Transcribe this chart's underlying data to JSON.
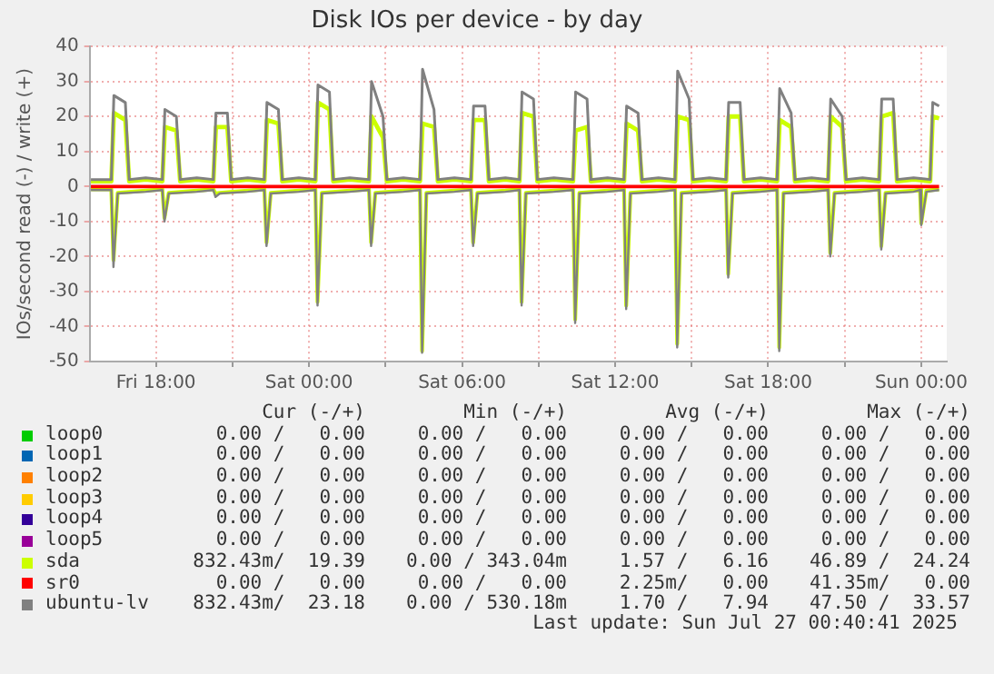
{
  "chart_data": {
    "type": "line",
    "title": "Disk IOs per device - by day",
    "ylabel": "IOs/second read (-) / write (+)",
    "xlim": [
      "2025-07-25T15:24",
      "2025-07-27T01:00"
    ],
    "xticks": [
      {
        "value": "2025-07-25T18:00",
        "label": "Fri 18:00"
      },
      {
        "value": "2025-07-25T21:00",
        "label": null
      },
      {
        "value": "2025-07-26T00:00",
        "label": "Sat 00:00"
      },
      {
        "value": "2025-07-26T03:00",
        "label": null
      },
      {
        "value": "2025-07-26T06:00",
        "label": "Sat 06:00"
      },
      {
        "value": "2025-07-26T09:00",
        "label": null
      },
      {
        "value": "2025-07-26T12:00",
        "label": "Sat 12:00"
      },
      {
        "value": "2025-07-26T15:00",
        "label": null
      },
      {
        "value": "2025-07-26T18:00",
        "label": "Sat 18:00"
      },
      {
        "value": "2025-07-26T21:00",
        "label": null
      },
      {
        "value": "2025-07-27T00:00",
        "label": "Sun 00:00"
      }
    ],
    "ylim": [
      -50,
      40
    ],
    "yticks": [
      -50,
      -40,
      -30,
      -20,
      -10,
      0,
      10,
      20,
      30,
      40
    ],
    "grid": true,
    "legend": "bottom",
    "marker": "none",
    "line_style": "solid",
    "series": [
      {
        "name": "loop0",
        "color": "#00cc00"
      },
      {
        "name": "loop1",
        "color": "#0066b3"
      },
      {
        "name": "loop2",
        "color": "#ff8000"
      },
      {
        "name": "loop3",
        "color": "#ffcc00"
      },
      {
        "name": "loop4",
        "color": "#330099"
      },
      {
        "name": "loop5",
        "color": "#990099"
      },
      {
        "name": "sda",
        "color": "#ccff00",
        "x": [
          "2025-07-25T15:27",
          "2025-07-25T16:15",
          "2025-07-25T16:21",
          "2025-07-25T16:48",
          "2025-07-25T16:57",
          "2025-07-25T17:36",
          "2025-07-25T18:15",
          "2025-07-25T18:21",
          "2025-07-25T18:48",
          "2025-07-25T18:57",
          "2025-07-25T19:36",
          "2025-07-25T20:15",
          "2025-07-25T20:21",
          "2025-07-25T20:48",
          "2025-07-25T20:57",
          "2025-07-25T21:36",
          "2025-07-25T22:15",
          "2025-07-25T22:21",
          "2025-07-25T22:48",
          "2025-07-25T22:57",
          "2025-07-25T23:36",
          "2025-07-26T00:15",
          "2025-07-26T00:21",
          "2025-07-26T00:48",
          "2025-07-26T00:57",
          "2025-07-26T01:36",
          "2025-07-26T02:21",
          "2025-07-26T02:27",
          "2025-07-26T02:54",
          "2025-07-26T03:03",
          "2025-07-26T03:42",
          "2025-07-26T04:21",
          "2025-07-26T04:27",
          "2025-07-26T04:54",
          "2025-07-26T05:03",
          "2025-07-26T05:42",
          "2025-07-26T06:21",
          "2025-07-26T06:27",
          "2025-07-26T06:54",
          "2025-07-26T07:03",
          "2025-07-26T07:42",
          "2025-07-26T08:15",
          "2025-07-26T08:21",
          "2025-07-26T08:48",
          "2025-07-26T08:57",
          "2025-07-26T09:36",
          "2025-07-26T10:21",
          "2025-07-26T10:27",
          "2025-07-26T10:54",
          "2025-07-26T11:03",
          "2025-07-26T11:42",
          "2025-07-26T12:21",
          "2025-07-26T12:27",
          "2025-07-26T12:54",
          "2025-07-26T13:03",
          "2025-07-26T13:42",
          "2025-07-26T14:21",
          "2025-07-26T14:27",
          "2025-07-26T14:54",
          "2025-07-26T15:03",
          "2025-07-26T15:42",
          "2025-07-26T16:21",
          "2025-07-26T16:27",
          "2025-07-26T16:54",
          "2025-07-26T17:03",
          "2025-07-26T17:42",
          "2025-07-26T18:21",
          "2025-07-26T18:27",
          "2025-07-26T18:54",
          "2025-07-26T19:03",
          "2025-07-26T19:42",
          "2025-07-26T20:21",
          "2025-07-26T20:27",
          "2025-07-26T20:54",
          "2025-07-26T21:03",
          "2025-07-26T21:42",
          "2025-07-26T22:21",
          "2025-07-26T22:27",
          "2025-07-26T22:54",
          "2025-07-26T23:03",
          "2025-07-26T23:42",
          "2025-07-27T00:21",
          "2025-07-27T00:27",
          "2025-07-27T00:42"
        ],
        "values": [
          1.5,
          1.5,
          21,
          19,
          1.5,
          2,
          1.5,
          17,
          16,
          1.5,
          2,
          1.5,
          17,
          17,
          1.5,
          2,
          1.5,
          19,
          18,
          1.5,
          2,
          1.5,
          24,
          22,
          1.5,
          2,
          1.5,
          20,
          14,
          1.5,
          2,
          1.5,
          18,
          17,
          1.5,
          2,
          1.5,
          19,
          19,
          1.5,
          2,
          1.5,
          21,
          20,
          1.5,
          2,
          1.5,
          16,
          17,
          1.5,
          2,
          1.5,
          18,
          16,
          1.5,
          2,
          1.5,
          20,
          19,
          1.5,
          2,
          1.5,
          20,
          20,
          1.5,
          2,
          1.5,
          19,
          17,
          1.5,
          2,
          1.5,
          20,
          17,
          1.5,
          2,
          1.5,
          20,
          21,
          1.5,
          2,
          1.5,
          20,
          19.5
        ]
      },
      {
        "color": "#ccff00",
        "x": [
          "2025-07-25T15:27",
          "2025-07-25T16:15",
          "2025-07-25T16:20",
          "2025-07-25T16:30",
          "2025-07-25T17:36",
          "2025-07-25T18:15",
          "2025-07-25T18:20",
          "2025-07-25T18:30",
          "2025-07-25T19:36",
          "2025-07-25T20:15",
          "2025-07-25T20:20",
          "2025-07-25T20:30",
          "2025-07-25T21:36",
          "2025-07-25T22:15",
          "2025-07-25T22:20",
          "2025-07-25T22:30",
          "2025-07-25T23:36",
          "2025-07-26T00:15",
          "2025-07-26T00:20",
          "2025-07-26T00:30",
          "2025-07-26T01:36",
          "2025-07-26T02:21",
          "2025-07-26T02:26",
          "2025-07-26T02:36",
          "2025-07-26T03:42",
          "2025-07-26T04:21",
          "2025-07-26T04:26",
          "2025-07-26T04:36",
          "2025-07-26T05:42",
          "2025-07-26T06:21",
          "2025-07-26T06:26",
          "2025-07-26T06:36",
          "2025-07-26T07:42",
          "2025-07-26T08:15",
          "2025-07-26T08:20",
          "2025-07-26T08:30",
          "2025-07-26T09:36",
          "2025-07-26T10:21",
          "2025-07-26T10:26",
          "2025-07-26T10:36",
          "2025-07-26T11:42",
          "2025-07-26T12:21",
          "2025-07-26T12:26",
          "2025-07-26T12:36",
          "2025-07-26T13:42",
          "2025-07-26T14:21",
          "2025-07-26T14:26",
          "2025-07-26T14:36",
          "2025-07-26T15:42",
          "2025-07-26T16:21",
          "2025-07-26T16:26",
          "2025-07-26T16:36",
          "2025-07-26T17:42",
          "2025-07-26T18:21",
          "2025-07-26T18:26",
          "2025-07-26T18:36",
          "2025-07-26T19:42",
          "2025-07-26T20:21",
          "2025-07-26T20:26",
          "2025-07-26T20:36",
          "2025-07-26T21:42",
          "2025-07-26T22:21",
          "2025-07-26T22:26",
          "2025-07-26T22:36",
          "2025-07-26T23:42",
          "2025-07-26T23:57",
          "2025-07-27T00:00",
          "2025-07-27T00:12",
          "2025-07-27T00:42"
        ],
        "values": [
          -0.8,
          -0.8,
          -21,
          -1.8,
          -1.2,
          -0.8,
          -9,
          -1.8,
          -1.2,
          -0.8,
          -2,
          -1.8,
          -1.2,
          -0.8,
          -16,
          -1.8,
          -1.2,
          -0.8,
          -33,
          -1.8,
          -1.2,
          -0.8,
          -16,
          -1.8,
          -1.2,
          -0.8,
          -47,
          -1.8,
          -1.2,
          -0.8,
          -16,
          -1.8,
          -1.2,
          -0.8,
          -33,
          -1.8,
          -1.2,
          -0.8,
          -38,
          -1.8,
          -1.2,
          -0.8,
          -34,
          -1.8,
          -1.2,
          -0.8,
          -45,
          -1.8,
          -1.2,
          -0.8,
          -25,
          -1.8,
          -1.2,
          -0.8,
          -46,
          -1.8,
          -1.2,
          -0.8,
          -19,
          -1.8,
          -1.2,
          -0.8,
          -17,
          -1.8,
          -1.2,
          -0.8,
          -10.5,
          -1.2,
          -0.8
        ]
      },
      {
        "name": "sr0",
        "color": "#ff0000",
        "x": [
          "2025-07-25T15:27",
          "2025-07-27T00:42"
        ],
        "values": [
          0,
          0
        ]
      },
      {
        "name": "ubuntu-lv",
        "color": "#808080",
        "x": [
          "2025-07-25T15:27",
          "2025-07-25T16:15",
          "2025-07-25T16:21",
          "2025-07-25T16:48",
          "2025-07-25T16:57",
          "2025-07-25T17:36",
          "2025-07-25T18:15",
          "2025-07-25T18:21",
          "2025-07-25T18:48",
          "2025-07-25T18:57",
          "2025-07-25T19:36",
          "2025-07-25T20:15",
          "2025-07-25T20:21",
          "2025-07-25T20:48",
          "2025-07-25T20:57",
          "2025-07-25T21:36",
          "2025-07-25T22:15",
          "2025-07-25T22:21",
          "2025-07-25T22:48",
          "2025-07-25T22:57",
          "2025-07-25T23:36",
          "2025-07-26T00:15",
          "2025-07-26T00:21",
          "2025-07-26T00:48",
          "2025-07-26T00:57",
          "2025-07-26T01:36",
          "2025-07-26T02:21",
          "2025-07-26T02:27",
          "2025-07-26T02:54",
          "2025-07-26T03:03",
          "2025-07-26T03:42",
          "2025-07-26T04:21",
          "2025-07-26T04:27",
          "2025-07-26T04:54",
          "2025-07-26T05:03",
          "2025-07-26T05:42",
          "2025-07-26T06:21",
          "2025-07-26T06:27",
          "2025-07-26T06:54",
          "2025-07-26T07:03",
          "2025-07-26T07:42",
          "2025-07-26T08:15",
          "2025-07-26T08:21",
          "2025-07-26T08:48",
          "2025-07-26T08:57",
          "2025-07-26T09:36",
          "2025-07-26T10:21",
          "2025-07-26T10:27",
          "2025-07-26T10:54",
          "2025-07-26T11:03",
          "2025-07-26T11:42",
          "2025-07-26T12:21",
          "2025-07-26T12:27",
          "2025-07-26T12:54",
          "2025-07-26T13:03",
          "2025-07-26T13:42",
          "2025-07-26T14:21",
          "2025-07-26T14:27",
          "2025-07-26T14:54",
          "2025-07-26T15:03",
          "2025-07-26T15:42",
          "2025-07-26T16:21",
          "2025-07-26T16:27",
          "2025-07-26T16:54",
          "2025-07-26T17:03",
          "2025-07-26T17:42",
          "2025-07-26T18:21",
          "2025-07-26T18:27",
          "2025-07-26T18:54",
          "2025-07-26T19:03",
          "2025-07-26T19:42",
          "2025-07-26T20:21",
          "2025-07-26T20:27",
          "2025-07-26T20:54",
          "2025-07-26T21:03",
          "2025-07-26T21:42",
          "2025-07-26T22:21",
          "2025-07-26T22:27",
          "2025-07-26T22:54",
          "2025-07-26T23:03",
          "2025-07-26T23:42",
          "2025-07-27T00:21",
          "2025-07-27T00:27",
          "2025-07-27T00:42"
        ],
        "values": [
          2,
          2,
          26,
          24,
          2,
          2.5,
          2,
          22,
          20,
          2,
          2.5,
          2,
          21,
          21,
          2,
          2.5,
          2,
          24,
          22,
          2,
          2.5,
          2,
          29,
          27,
          2,
          2.5,
          2,
          30,
          20,
          2,
          2.5,
          2,
          33.5,
          22,
          2,
          2.5,
          2,
          23,
          23,
          2,
          2.5,
          2,
          27,
          25,
          2,
          2.5,
          2,
          27,
          25,
          2,
          2.5,
          2,
          23,
          21,
          2,
          2.5,
          2,
          33,
          25,
          2,
          2.5,
          2,
          24,
          24,
          2,
          2.5,
          2,
          28,
          21,
          2,
          2.5,
          2,
          25,
          20,
          2,
          2.5,
          2,
          25,
          25,
          2,
          2.5,
          2,
          24,
          23
        ]
      },
      {
        "color": "#808080",
        "x": [
          "2025-07-25T15:27",
          "2025-07-25T16:15",
          "2025-07-25T16:20",
          "2025-07-25T16:30",
          "2025-07-25T17:36",
          "2025-07-25T18:15",
          "2025-07-25T18:20",
          "2025-07-25T18:30",
          "2025-07-25T19:36",
          "2025-07-25T20:15",
          "2025-07-25T20:20",
          "2025-07-25T20:30",
          "2025-07-25T21:36",
          "2025-07-25T22:15",
          "2025-07-25T22:20",
          "2025-07-25T22:30",
          "2025-07-25T23:36",
          "2025-07-26T00:15",
          "2025-07-26T00:20",
          "2025-07-26T00:30",
          "2025-07-26T01:36",
          "2025-07-26T02:21",
          "2025-07-26T02:26",
          "2025-07-26T02:36",
          "2025-07-26T03:42",
          "2025-07-26T04:21",
          "2025-07-26T04:26",
          "2025-07-26T04:36",
          "2025-07-26T05:42",
          "2025-07-26T06:21",
          "2025-07-26T06:26",
          "2025-07-26T06:36",
          "2025-07-26T07:42",
          "2025-07-26T08:15",
          "2025-07-26T08:20",
          "2025-07-26T08:30",
          "2025-07-26T09:36",
          "2025-07-26T10:21",
          "2025-07-26T10:26",
          "2025-07-26T10:36",
          "2025-07-26T11:42",
          "2025-07-26T12:21",
          "2025-07-26T12:26",
          "2025-07-26T12:36",
          "2025-07-26T13:42",
          "2025-07-26T14:21",
          "2025-07-26T14:26",
          "2025-07-26T14:36",
          "2025-07-26T15:42",
          "2025-07-26T16:21",
          "2025-07-26T16:26",
          "2025-07-26T16:36",
          "2025-07-26T17:42",
          "2025-07-26T18:21",
          "2025-07-26T18:26",
          "2025-07-26T18:36",
          "2025-07-26T19:42",
          "2025-07-26T20:21",
          "2025-07-26T20:26",
          "2025-07-26T20:36",
          "2025-07-26T21:42",
          "2025-07-26T22:21",
          "2025-07-26T22:26",
          "2025-07-26T22:36",
          "2025-07-26T23:42",
          "2025-07-26T23:57",
          "2025-07-27T00:00",
          "2025-07-27T00:12",
          "2025-07-27T00:42"
        ],
        "values": [
          -1,
          -1,
          -23,
          -2,
          -1.5,
          -1,
          -10,
          -2,
          -1.5,
          -1,
          -3,
          -2,
          -1.5,
          -1,
          -17,
          -2,
          -1.5,
          -1,
          -34,
          -2,
          -1.5,
          -1,
          -17,
          -2,
          -1.5,
          -1,
          -47.5,
          -2,
          -1.5,
          -1,
          -17,
          -2,
          -1.5,
          -1,
          -34,
          -2,
          -1.5,
          -1,
          -39,
          -2,
          -1.5,
          -1,
          -35,
          -2,
          -1.5,
          -1,
          -46,
          -2,
          -1.5,
          -1,
          -26,
          -2,
          -1.5,
          -1,
          -47,
          -2,
          -1.5,
          -1,
          -20,
          -2,
          -1.5,
          -1,
          -18,
          -2,
          -1.5,
          -1,
          -11,
          -1.5,
          -1
        ]
      }
    ],
    "annotations": [
      "Cur (-/+)",
      "Min (-/+)",
      "Avg (-/+)",
      "Max (-/+)",
      "0.00 /   0.00",
      "0.00 /   0.00",
      "0.00 /   0.00",
      "0.00 /   0.00",
      "0.00 /   0.00",
      "0.00 /   0.00",
      "0.00 /   0.00",
      "0.00 /   0.00",
      "0.00 /   0.00",
      "0.00 /   0.00",
      "0.00 /   0.00",
      "0.00 /   0.00",
      "0.00 /   0.00",
      "0.00 /   0.00",
      "0.00 /   0.00",
      "0.00 /   0.00",
      "0.00 /   0.00",
      "0.00 /   0.00",
      "0.00 /   0.00",
      "0.00 /   0.00",
      "0.00 /   0.00",
      "0.00 /   0.00",
      "0.00 /   0.00",
      "0.00 /   0.00",
      "832.43m/  19.39",
      "0.00 / 343.04m",
      "1.57 /   6.16",
      "46.89 /  24.24",
      "0.00 /   0.00",
      "0.00 /   0.00",
      "2.25m/   0.00",
      "41.35m/   0.00",
      "832.43m/  23.18",
      "0.00 / 530.18m",
      "1.70 /   7.94",
      "47.50 /  33.57",
      "Last update: Sun Jul 27 00:40:41 2025"
    ]
  }
}
